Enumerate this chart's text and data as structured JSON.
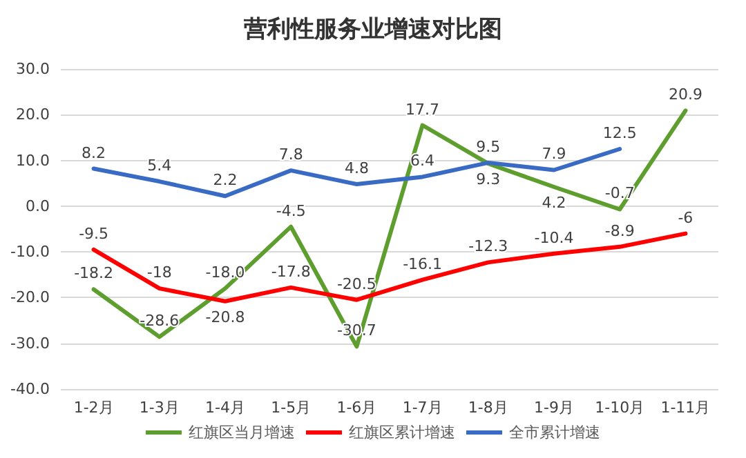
{
  "chart_data": {
    "type": "line",
    "title": "营利性服务业增速对比图",
    "categories": [
      "1-2月",
      "1-3月",
      "1-4月",
      "1-5月",
      "1-6月",
      "1-7月",
      "1-8月",
      "1-9月",
      "1-10月",
      "1-11月"
    ],
    "series": [
      {
        "name": "红旗区当月增速",
        "color": "#5e9e2f",
        "values": [
          -18.2,
          -28.6,
          -18.0,
          -4.5,
          -30.7,
          17.7,
          9.3,
          4.2,
          -0.7,
          20.9
        ],
        "value_labels": [
          "-18.2",
          "-28.6",
          "-18.0",
          "-4.5",
          "-30.7",
          "17.7",
          "9.3",
          "4.2",
          "-0.7",
          "20.9"
        ]
      },
      {
        "name": "红旗区累计增速",
        "color": "#ff0000",
        "values": [
          -9.5,
          -18,
          -20.8,
          -17.8,
          -20.5,
          -16.1,
          -12.3,
          -10.4,
          -8.9,
          -6
        ],
        "value_labels": [
          "-9.5",
          "-18",
          "-20.8",
          "-17.8",
          "-20.5",
          "-16.1",
          "-12.3",
          "-10.4",
          "-8.9",
          "-6"
        ]
      },
      {
        "name": "全市累计增速",
        "color": "#3a6bc4",
        "values": [
          8.2,
          5.4,
          2.2,
          7.8,
          4.8,
          6.4,
          9.5,
          7.9,
          12.5,
          null
        ],
        "value_labels": [
          "8.2",
          "5.4",
          "2.2",
          "7.8",
          "4.8",
          "6.4",
          "9.5",
          "7.9",
          "12.5",
          null
        ]
      }
    ],
    "ylim": [
      -40,
      30
    ],
    "yticks": [
      {
        "value": -40,
        "label": "-40.0"
      },
      {
        "value": -30,
        "label": "-30.0"
      },
      {
        "value": -20,
        "label": "-20.0"
      },
      {
        "value": -10,
        "label": "-10.0"
      },
      {
        "value": 0,
        "label": "0.0"
      },
      {
        "value": 10,
        "label": "10.0"
      },
      {
        "value": 20,
        "label": "20.0"
      },
      {
        "value": 30,
        "label": "30.0"
      }
    ],
    "grid": "y",
    "legend": "bottom",
    "marker": "none",
    "line_style": "solid"
  }
}
